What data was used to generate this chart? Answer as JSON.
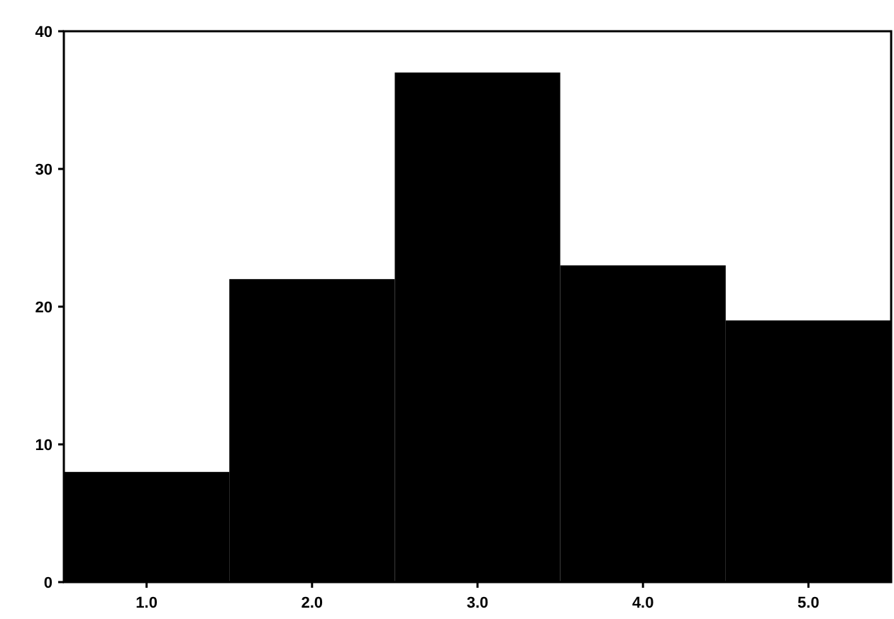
{
  "chart_data": {
    "type": "histogram",
    "bins": [
      0.5,
      1.5,
      2.5,
      3.5,
      4.5,
      5.5
    ],
    "values": [
      8,
      22,
      37,
      23,
      19
    ],
    "color": "#000000",
    "xlim": [
      0.5,
      5.5
    ],
    "xticks": [
      {
        "value": 1,
        "label": "1.0"
      },
      {
        "value": 2,
        "label": "2.0"
      },
      {
        "value": 3,
        "label": "3.0"
      },
      {
        "value": 4,
        "label": "4.0"
      },
      {
        "value": 5,
        "label": "5.0"
      }
    ],
    "ylim": [
      0,
      40
    ],
    "yticks": [
      0,
      10,
      20,
      30,
      40
    ],
    "grid": false
  }
}
